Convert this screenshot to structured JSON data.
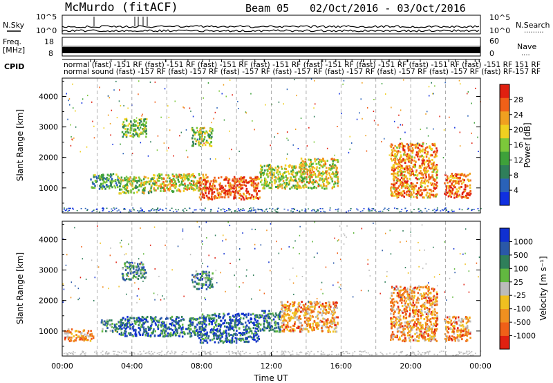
{
  "header": {
    "station": "McMurdo (fitACF)",
    "beam": "Beam 05",
    "dates": "02/Oct/2016 - 03/Oct/2016"
  },
  "top_panels": {
    "nsky_label": "N.Sky",
    "nsearch_label": "N.Search",
    "nsearch_dots": ".........",
    "nsky_ticks": [
      "10^5",
      "10^0"
    ],
    "nsearch_ticks": [
      "10^5",
      "10^0"
    ],
    "freq_label_line1": "Freq.",
    "freq_label_line2": "[MHz]",
    "freq_ticks": [
      "18",
      "8"
    ],
    "nave_label": "Nave",
    "nave_dots": "....",
    "nave_ticks": [
      "60",
      "0"
    ],
    "cpid_label": "CPID",
    "cpid_line1": "normal (fast) -151 RF (fast) -151 RF (fast) -151 RF (fast) -151 RF (fast) -151 RF (fast) -151 RF (fast) -151 RF (fast) -151 RF 151 RF",
    "cpid_line2": "normal sound (fast) -157 RF (fast) -157 RF (fast) -157 RF (fast) -157 RF (fast) -157 RF (fast) -157 RF (fast) -157 RF (fast) RF-157 RF"
  },
  "chart_data": [
    {
      "type": "heatmap",
      "panel": "power",
      "ylabel": "Slant Range [km]",
      "yticks": [
        1000,
        2000,
        3000,
        4000
      ],
      "ylim": [
        180,
        4600
      ],
      "xlim_hours": [
        0,
        24
      ],
      "colorbar": {
        "label": "Power [dB]",
        "ticks": [
          "4",
          "8",
          "12",
          "16",
          "20",
          "24",
          "28"
        ],
        "colors": [
          "#1030e0",
          "#2a62b8",
          "#2f7f5a",
          "#3ea13a",
          "#7cc83a",
          "#f0d020",
          "#f0a020",
          "#f06018",
          "#e02010"
        ]
      },
      "echo_regions": [
        {
          "t0": 1.6,
          "t1": 3.2,
          "r0": 1000,
          "r1": 1500,
          "level": 0.35
        },
        {
          "t0": 3.2,
          "t1": 5.2,
          "r0": 850,
          "r1": 1400,
          "level": 0.5
        },
        {
          "t0": 5.2,
          "t1": 8.2,
          "r0": 900,
          "r1": 1500,
          "level": 0.6
        },
        {
          "t0": 7.8,
          "t1": 11.3,
          "r0": 650,
          "r1": 1400,
          "level": 0.85
        },
        {
          "t0": 11.3,
          "t1": 13.6,
          "r0": 1000,
          "r1": 1800,
          "level": 0.55
        },
        {
          "t0": 13.6,
          "t1": 15.8,
          "r0": 1000,
          "r1": 2000,
          "level": 0.6
        },
        {
          "t0": 18.8,
          "t1": 21.5,
          "r0": 700,
          "r1": 2500,
          "level": 0.75
        },
        {
          "t0": 21.9,
          "t1": 23.4,
          "r0": 700,
          "r1": 1500,
          "level": 0.8
        },
        {
          "t0": 3.4,
          "t1": 4.8,
          "r0": 2700,
          "r1": 3300,
          "level": 0.45
        },
        {
          "t0": 7.4,
          "t1": 8.6,
          "r0": 2400,
          "r1": 3000,
          "level": 0.5
        }
      ]
    },
    {
      "type": "heatmap",
      "panel": "velocity",
      "ylabel": "Slant Range [km]",
      "xlabel": "Time UT",
      "yticks": [
        1000,
        2000,
        3000,
        4000
      ],
      "ylim": [
        180,
        4600
      ],
      "xlim_hours": [
        0,
        24
      ],
      "xtick_labels": [
        "00:00",
        "04:00",
        "08:00",
        "12:00",
        "16:00",
        "20:00",
        "00:00"
      ],
      "colorbar": {
        "label": "Velocity [m s⁻¹]",
        "ticks": [
          "1000",
          "500",
          "100",
          "25",
          "-25",
          "-100",
          "-500",
          "-1000"
        ],
        "colors": [
          "#1030d0",
          "#2a58a8",
          "#2f7f5a",
          "#62b840",
          "#bcbcbc",
          "#f0c020",
          "#f09020",
          "#f06018",
          "#e02010"
        ]
      },
      "echo_regions": [
        {
          "t0": 0.1,
          "t1": 1.8,
          "r0": 700,
          "r1": 1100,
          "level": 0.68
        },
        {
          "t0": 2.2,
          "t1": 3.2,
          "r0": 1000,
          "r1": 1400,
          "level": 0.35
        },
        {
          "t0": 3.2,
          "t1": 8.2,
          "r0": 850,
          "r1": 1500,
          "level": 0.22
        },
        {
          "t0": 7.8,
          "t1": 11.3,
          "r0": 650,
          "r1": 1600,
          "level": 0.18
        },
        {
          "t0": 11.3,
          "t1": 12.5,
          "r0": 1000,
          "r1": 1700,
          "level": 0.25
        },
        {
          "t0": 12.5,
          "t1": 15.8,
          "r0": 1000,
          "r1": 2000,
          "level": 0.7
        },
        {
          "t0": 18.8,
          "t1": 21.5,
          "r0": 700,
          "r1": 2500,
          "level": 0.72
        },
        {
          "t0": 21.9,
          "t1": 23.4,
          "r0": 700,
          "r1": 1500,
          "level": 0.72
        },
        {
          "t0": 3.4,
          "t1": 4.8,
          "r0": 2700,
          "r1": 3300,
          "level": 0.3
        },
        {
          "t0": 7.4,
          "t1": 8.6,
          "r0": 2400,
          "r1": 3000,
          "level": 0.3
        }
      ]
    }
  ]
}
